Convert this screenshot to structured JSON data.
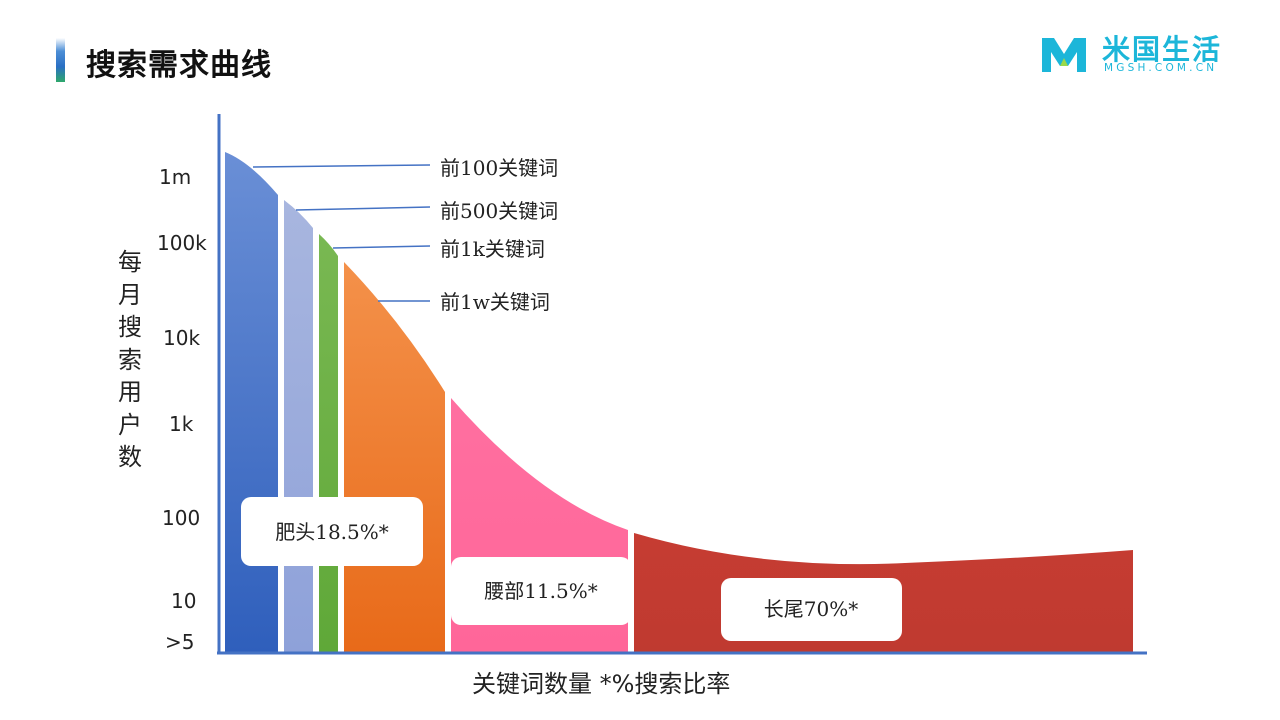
{
  "header": {
    "title": "搜索需求曲线"
  },
  "logo": {
    "name": "米国生活",
    "sub": "MGSH.COM.CN",
    "color": "#1cb6d9"
  },
  "chart_data": {
    "type": "area",
    "ylabel": "每月搜索用户数",
    "xlabel": "关键词数量 *%搜索比率",
    "y_ticks": [
      "1m",
      "100k",
      "10k",
      "1k",
      "100",
      "10",
      ">5"
    ],
    "y_scale": "log",
    "callouts": [
      "前100关键词",
      "前500关键词",
      "前1k关键词",
      "前1w关键词"
    ],
    "segments": [
      {
        "name": "前100",
        "color_top": "#6a8fd6",
        "color_bottom": "#2f5fbc"
      },
      {
        "name": "前500",
        "color_top": "#a8b6df",
        "color_bottom": "#8ea1d9"
      },
      {
        "name": "前1k",
        "color_top": "#79b852",
        "color_bottom": "#5fa838"
      },
      {
        "name": "前1w",
        "color_top": "#f4914a",
        "color_bottom": "#e86a19"
      },
      {
        "name": "腰部",
        "color_top": "#ff6fa0",
        "color_bottom": "#ff6699"
      },
      {
        "name": "长尾",
        "color_top": "#c63c32",
        "color_bottom": "#bf3a30"
      }
    ],
    "group_labels": [
      {
        "label": "肥头18.5%*",
        "share_percent": 18.5
      },
      {
        "label": "腰部11.5%*",
        "share_percent": 11.5
      },
      {
        "label": "长尾70%*",
        "share_percent": 70
      }
    ]
  }
}
